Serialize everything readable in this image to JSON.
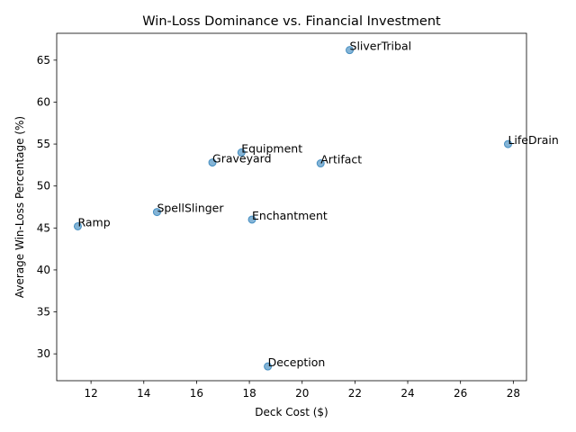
{
  "chart_data": {
    "type": "scatter",
    "title": "Win-Loss Dominance vs. Financial Investment",
    "xlabel": "Deck Cost ($)",
    "ylabel": "Average Win-Loss Percentage (%)",
    "xlim": [
      10.7,
      28.5
    ],
    "ylim": [
      26.8,
      68.2
    ],
    "xticks": [
      12,
      14,
      16,
      18,
      20,
      22,
      24,
      26,
      28
    ],
    "yticks": [
      30,
      35,
      40,
      45,
      50,
      55,
      60,
      65
    ],
    "grid": false,
    "legend": "none",
    "color": "#1f77b4",
    "points": [
      {
        "label": "SliverTribal",
        "x": 21.8,
        "y": 66.2
      },
      {
        "label": "LifeDrain",
        "x": 27.8,
        "y": 55.0
      },
      {
        "label": "Equipment",
        "x": 17.7,
        "y": 54.0
      },
      {
        "label": "Graveyard",
        "x": 16.6,
        "y": 52.8
      },
      {
        "label": "Artifact",
        "x": 20.7,
        "y": 52.7
      },
      {
        "label": "SpellSlinger",
        "x": 14.5,
        "y": 46.9
      },
      {
        "label": "Enchantment",
        "x": 18.1,
        "y": 46.0
      },
      {
        "label": "Ramp",
        "x": 11.5,
        "y": 45.2
      },
      {
        "label": "Deception",
        "x": 18.7,
        "y": 28.5
      }
    ]
  }
}
